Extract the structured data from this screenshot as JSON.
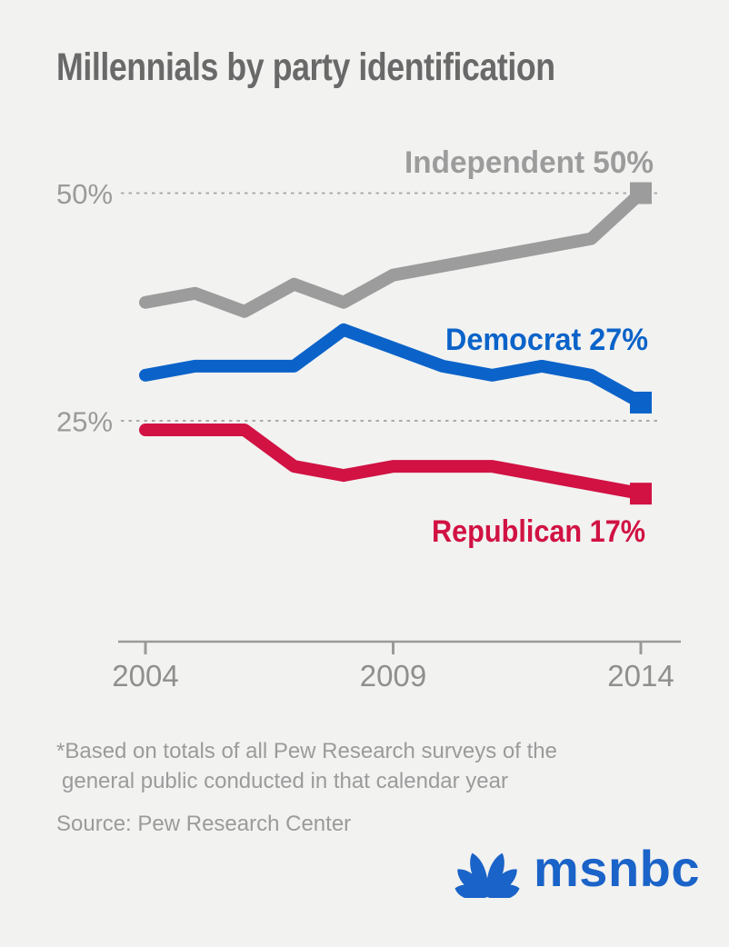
{
  "title": "Millennials by party identification",
  "colors": {
    "background": "#f2f2f1",
    "title": "#696969",
    "independent": "#9c9c9c",
    "democrat": "#0b63c9",
    "republican": "#d11243",
    "axis": "#9a9a9a",
    "xtick_label": "#8f8f8f",
    "ytick_label": "#9a9a9a",
    "gridline": "#ababab",
    "footnote": "#9b9b9b",
    "logo_blue": "#1a63c8"
  },
  "chart_data": {
    "type": "line",
    "x": [
      2004,
      2005,
      2006,
      2007,
      2008,
      2009,
      2010,
      2011,
      2012,
      2013,
      2014
    ],
    "x_range": [
      2004,
      2014
    ],
    "series": [
      {
        "name": "Independent",
        "label": "Independent 50%",
        "end_value": 50,
        "color": "#9c9c9c",
        "values": [
          38,
          39,
          37,
          40,
          38,
          41,
          42,
          43,
          44,
          45,
          50
        ]
      },
      {
        "name": "Democrat",
        "label": "Democrat 27%",
        "end_value": 27,
        "color": "#0b63c9",
        "values": [
          30,
          31,
          31,
          31,
          35,
          33,
          31,
          30,
          31,
          30,
          27
        ]
      },
      {
        "name": "Republican",
        "label": "Republican 17%",
        "end_value": 17,
        "color": "#d11243",
        "values": [
          24,
          24,
          24,
          20,
          19,
          20,
          20,
          20,
          19,
          18,
          17
        ]
      }
    ],
    "xticks": {
      "values": [
        2004,
        2009,
        2014
      ],
      "labels": [
        "2004",
        "2009",
        "2014"
      ]
    },
    "yticks": {
      "values": [
        50,
        25
      ],
      "labels": [
        "50%",
        "25%"
      ]
    },
    "grid": "horizontal dashed lines at 50% and 25%",
    "legend": "inline labels at line ends"
  },
  "footnote": {
    "line1": "*Based on totals of all Pew Research surveys of the",
    "line2": "general public conducted in that calendar year",
    "source": "Source: Pew Research Center"
  },
  "logo": {
    "text": "msnbc"
  }
}
